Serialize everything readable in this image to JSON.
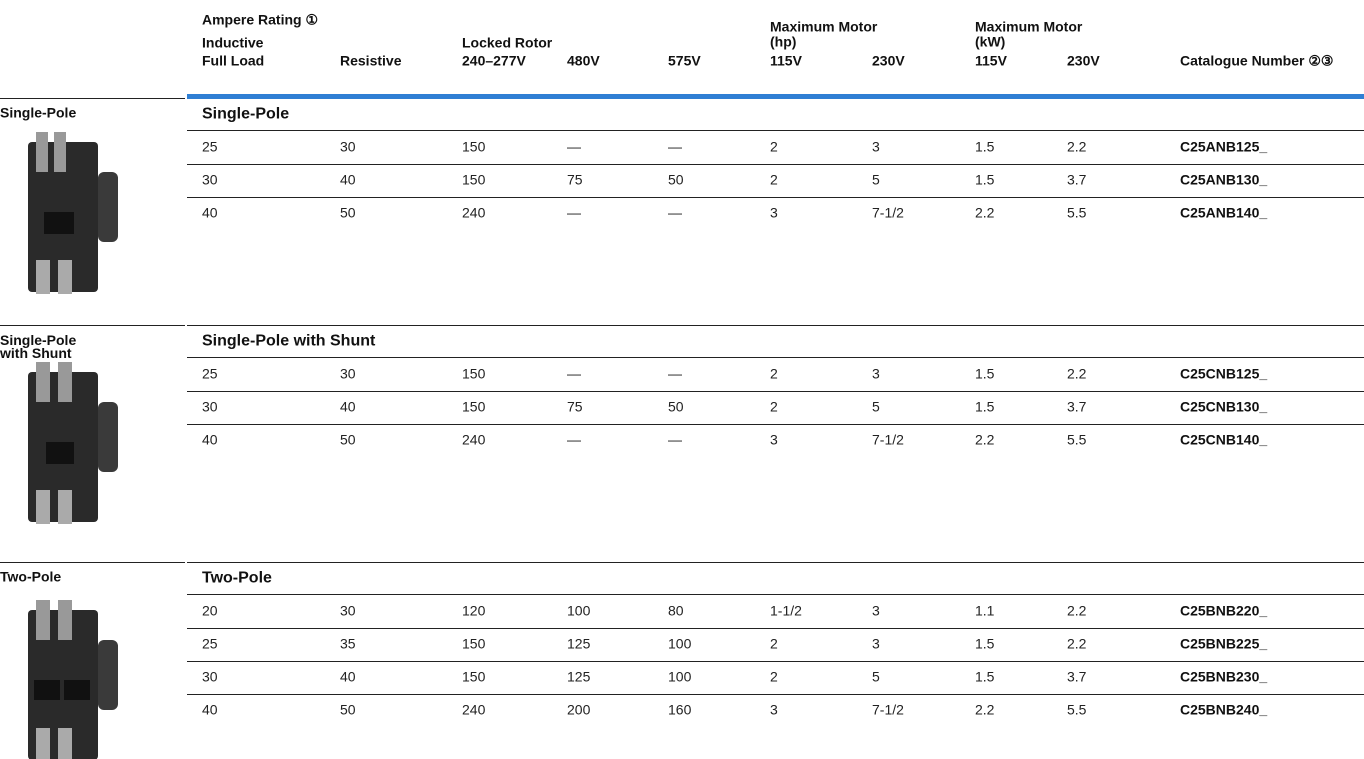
{
  "header": {
    "ampere_rating": "Ampere Rating ①",
    "inductive": "Inductive",
    "locked_rotor": "Locked Rotor",
    "max_motor_hp": "Maximum Motor",
    "hp_unit": "(hp)",
    "max_motor_kw": "Maximum Motor",
    "kw_unit": "(kW)",
    "columns": [
      "Full Load",
      "Resistive",
      "240–277V",
      "480V",
      "575V",
      "115V",
      "230V",
      "115V",
      "230V",
      "Catalogue Number ②③"
    ]
  },
  "sections": [
    {
      "side_label": "Single-Pole",
      "title": "Single-Pole",
      "rows": [
        [
          "25",
          "30",
          "150",
          "—",
          "—",
          "2",
          "3",
          "1.5",
          "2.2",
          "C25ANB125_"
        ],
        [
          "30",
          "40",
          "150",
          "75",
          "50",
          "2",
          "5",
          "1.5",
          "3.7",
          "C25ANB130_"
        ],
        [
          "40",
          "50",
          "240",
          "—",
          "—",
          "3",
          "7-1/2",
          "2.2",
          "5.5",
          "C25ANB140_"
        ]
      ]
    },
    {
      "side_label": "Single-Pole with Shunt",
      "title": "Single-Pole with Shunt",
      "rows": [
        [
          "25",
          "30",
          "150",
          "—",
          "—",
          "2",
          "3",
          "1.5",
          "2.2",
          "C25CNB125_"
        ],
        [
          "30",
          "40",
          "150",
          "75",
          "50",
          "2",
          "5",
          "1.5",
          "3.7",
          "C25CNB130_"
        ],
        [
          "40",
          "50",
          "240",
          "—",
          "—",
          "3",
          "7-1/2",
          "2.2",
          "5.5",
          "C25CNB140_"
        ]
      ]
    },
    {
      "side_label": "Two-Pole",
      "title": "Two-Pole",
      "rows": [
        [
          "20",
          "30",
          "120",
          "100",
          "80",
          "1-1/2",
          "3",
          "1.1",
          "2.2",
          "C25BNB220_"
        ],
        [
          "25",
          "35",
          "150",
          "125",
          "100",
          "2",
          "3",
          "1.5",
          "2.2",
          "C25BNB225_"
        ],
        [
          "30",
          "40",
          "150",
          "125",
          "100",
          "2",
          "5",
          "1.5",
          "3.7",
          "C25BNB230_"
        ],
        [
          "40",
          "50",
          "240",
          "200",
          "160",
          "3",
          "7-1/2",
          "2.2",
          "5.5",
          "C25BNB240_"
        ]
      ]
    }
  ]
}
